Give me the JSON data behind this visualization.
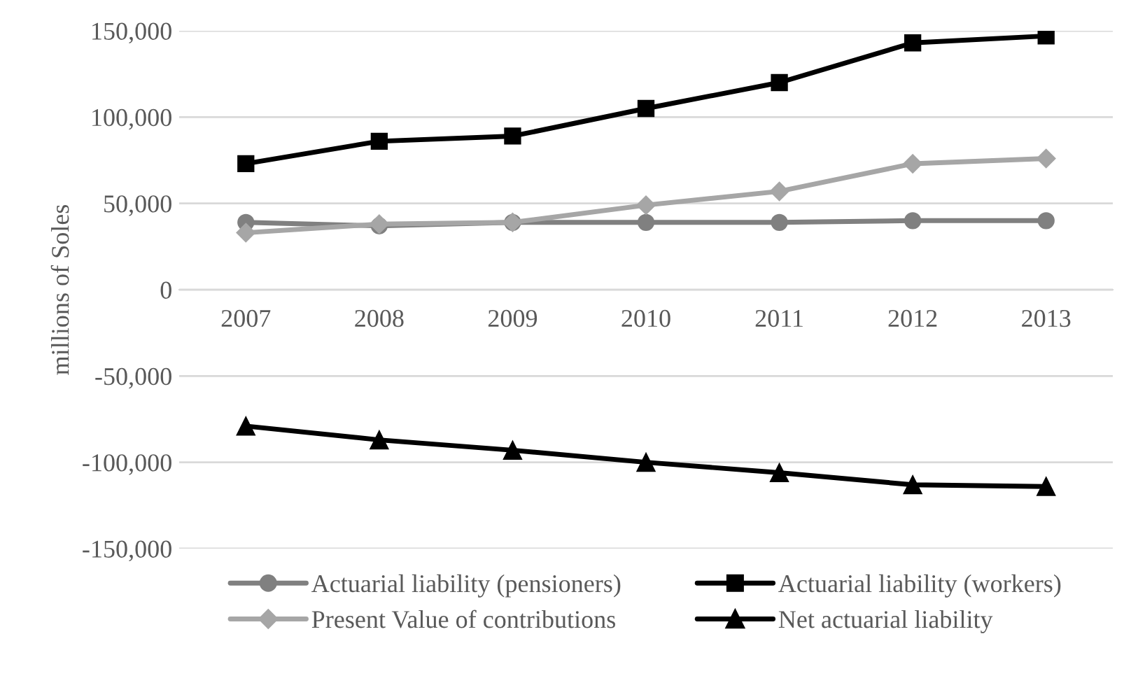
{
  "chart_data": {
    "type": "line",
    "ylabel": "millions of Soles",
    "categories": [
      "2007",
      "2008",
      "2009",
      "2010",
      "2011",
      "2012",
      "2013"
    ],
    "series": [
      {
        "name": "Actuarial liability (pensioners)",
        "color": "#808080",
        "marker": "circle",
        "values": [
          39000,
          37000,
          39000,
          39000,
          39000,
          40000,
          40000
        ]
      },
      {
        "name": "Actuarial liability (workers)",
        "color": "#000000",
        "marker": "square",
        "values": [
          73000,
          86000,
          89000,
          105000,
          120000,
          143000,
          147000
        ]
      },
      {
        "name": "Present Value of contributions",
        "color": "#a6a6a6",
        "marker": "diamond",
        "values": [
          33000,
          38000,
          39000,
          49000,
          57000,
          73000,
          76000
        ]
      },
      {
        "name": "Net actuarial liability",
        "color": "#000000",
        "marker": "triangle",
        "values": [
          -79000,
          -87000,
          -93000,
          -100000,
          -106000,
          -113000,
          -114000
        ]
      }
    ],
    "ylim": [
      -150000,
      150000
    ],
    "yticks": [
      {
        "value": -150000,
        "label": "-150,000"
      },
      {
        "value": -100000,
        "label": "-100,000"
      },
      {
        "value": -50000,
        "label": "-50,000"
      },
      0,
      {
        "value": 50000,
        "label": "50,000"
      },
      {
        "value": 100000,
        "label": "100,000"
      },
      {
        "value": 150000,
        "label": "150,000"
      }
    ],
    "grid": "y",
    "legend": "bottom",
    "line_style": "solid"
  }
}
